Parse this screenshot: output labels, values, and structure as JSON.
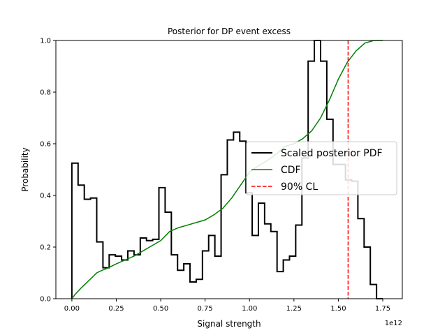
{
  "chart_data": {
    "type": "line",
    "title": "Posterior for DP event excess",
    "xlabel": "Signal strength",
    "ylabel": "Probability",
    "x_offset_label": "1e12",
    "xlim": [
      -0.09,
      1.86
    ],
    "ylim": [
      0.0,
      1.0
    ],
    "x_ticks": [
      0.0,
      0.25,
      0.5,
      0.75,
      1.0,
      1.25,
      1.5,
      1.75
    ],
    "x_tick_labels": [
      "0.00",
      "0.25",
      "0.50",
      "0.75",
      "1.00",
      "1.25",
      "1.50",
      "1.75"
    ],
    "y_ticks": [
      0.0,
      0.2,
      0.4,
      0.6,
      0.8,
      1.0
    ],
    "y_tick_labels": [
      "0.0",
      "0.2",
      "0.4",
      "0.6",
      "0.8",
      "1.0"
    ],
    "legend_position": "center-right",
    "series": [
      {
        "name": "Scaled posterior PDF",
        "style": "step",
        "color": "#000000",
        "bin_edges": [
          0.0,
          0.035,
          0.07,
          0.105,
          0.14,
          0.175,
          0.21,
          0.245,
          0.28,
          0.315,
          0.35,
          0.385,
          0.42,
          0.455,
          0.49,
          0.525,
          0.56,
          0.595,
          0.63,
          0.665,
          0.7,
          0.735,
          0.77,
          0.805,
          0.84,
          0.875,
          0.91,
          0.945,
          0.98,
          1.015,
          1.05,
          1.085,
          1.12,
          1.155,
          1.19,
          1.225,
          1.26,
          1.295,
          1.33,
          1.365,
          1.4,
          1.435,
          1.47,
          1.505,
          1.54,
          1.575,
          1.61,
          1.645,
          1.68,
          1.715,
          1.75
        ],
        "values": [
          0.525,
          0.44,
          0.385,
          0.39,
          0.22,
          0.12,
          0.17,
          0.165,
          0.15,
          0.185,
          0.17,
          0.235,
          0.225,
          0.23,
          0.43,
          0.335,
          0.17,
          0.11,
          0.135,
          0.065,
          0.075,
          0.185,
          0.245,
          0.165,
          0.48,
          0.615,
          0.645,
          0.61,
          0.41,
          0.245,
          0.37,
          0.29,
          0.26,
          0.105,
          0.15,
          0.165,
          0.285,
          0.545,
          0.92,
          1.0,
          0.92,
          0.695,
          0.52,
          0.52,
          0.46,
          0.455,
          0.31,
          0.2,
          0.055,
          0.0
        ]
      },
      {
        "name": "CDF",
        "style": "line",
        "color": "#008000",
        "x": [
          0.0,
          0.02,
          0.05,
          0.08,
          0.11,
          0.14,
          0.17,
          0.2,
          0.25,
          0.3,
          0.35,
          0.4,
          0.45,
          0.5,
          0.55,
          0.6,
          0.65,
          0.7,
          0.75,
          0.8,
          0.85,
          0.9,
          0.95,
          1.0,
          1.05,
          1.1,
          1.15,
          1.2,
          1.25,
          1.3,
          1.35,
          1.4,
          1.45,
          1.5,
          1.55,
          1.6,
          1.65,
          1.7,
          1.75
        ],
        "y": [
          0.0,
          0.018,
          0.04,
          0.06,
          0.08,
          0.1,
          0.11,
          0.118,
          0.135,
          0.15,
          0.165,
          0.185,
          0.205,
          0.225,
          0.26,
          0.275,
          0.285,
          0.295,
          0.305,
          0.325,
          0.35,
          0.39,
          0.44,
          0.49,
          0.515,
          0.535,
          0.56,
          0.59,
          0.6,
          0.62,
          0.65,
          0.7,
          0.77,
          0.85,
          0.915,
          0.96,
          0.99,
          1.0,
          1.0
        ]
      },
      {
        "name": "90% CL",
        "style": "dashed-vertical",
        "color": "#ff0000",
        "x_value": 1.555
      }
    ]
  }
}
